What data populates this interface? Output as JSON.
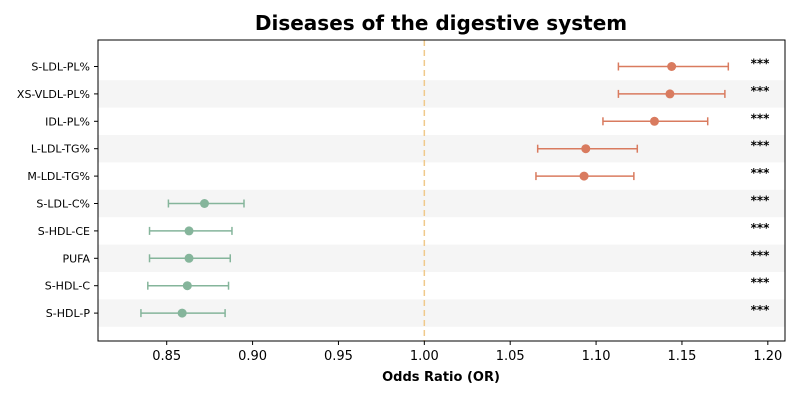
{
  "chart_data": {
    "type": "forest",
    "title": "Diseases of the digestive system",
    "xlabel": "Odds Ratio (OR)",
    "ylabel": "",
    "xlim": [
      0.81,
      1.21
    ],
    "xticks": [
      0.85,
      0.9,
      0.95,
      1.0,
      1.05,
      1.1,
      1.15,
      1.2
    ],
    "xtick_labels": [
      "0.85",
      "0.90",
      "0.95",
      "1.00",
      "1.05",
      "1.10",
      "1.15",
      "1.20"
    ],
    "reference_line": 1.0,
    "grid": false,
    "row_banding": true,
    "colors": {
      "positive": "#D97B5F",
      "negative": "#85B59B",
      "reference": "#F0C98B",
      "band": "#F5F5F5"
    },
    "rows": [
      {
        "label": "S-LDL-PL%",
        "or": 1.144,
        "ci_low": 1.113,
        "ci_high": 1.177,
        "sig": "***"
      },
      {
        "label": "XS-VLDL-PL%",
        "or": 1.143,
        "ci_low": 1.113,
        "ci_high": 1.175,
        "sig": "***"
      },
      {
        "label": "IDL-PL%",
        "or": 1.134,
        "ci_low": 1.104,
        "ci_high": 1.165,
        "sig": "***"
      },
      {
        "label": "L-LDL-TG%",
        "or": 1.094,
        "ci_low": 1.066,
        "ci_high": 1.124,
        "sig": "***"
      },
      {
        "label": "M-LDL-TG%",
        "or": 1.093,
        "ci_low": 1.065,
        "ci_high": 1.122,
        "sig": "***"
      },
      {
        "label": "S-LDL-C%",
        "or": 0.872,
        "ci_low": 0.851,
        "ci_high": 0.895,
        "sig": "***"
      },
      {
        "label": "S-HDL-CE",
        "or": 0.863,
        "ci_low": 0.84,
        "ci_high": 0.888,
        "sig": "***"
      },
      {
        "label": "PUFA",
        "or": 0.863,
        "ci_low": 0.84,
        "ci_high": 0.887,
        "sig": "***"
      },
      {
        "label": "S-HDL-C",
        "or": 0.862,
        "ci_low": 0.839,
        "ci_high": 0.886,
        "sig": "***"
      },
      {
        "label": "S-HDL-P",
        "or": 0.859,
        "ci_low": 0.835,
        "ci_high": 0.884,
        "sig": "***"
      }
    ]
  }
}
